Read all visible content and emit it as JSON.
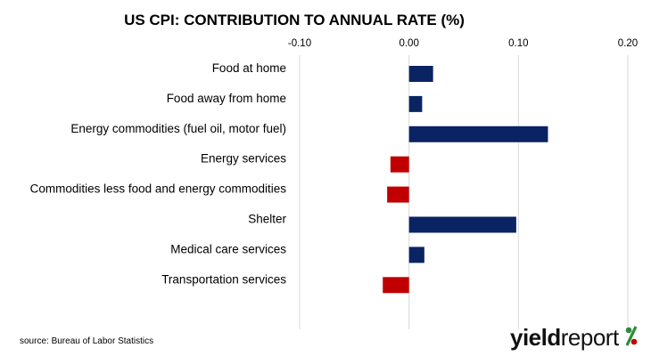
{
  "chart_data": {
    "type": "bar",
    "orientation": "horizontal",
    "title": "US CPI: CONTRIBUTION TO ANNUAL RATE (%)",
    "xlim": [
      -0.1,
      0.2
    ],
    "ticks": [
      "-0.10",
      "0.00",
      "0.10",
      "0.20"
    ],
    "tick_values": [
      -0.1,
      0.0,
      0.1,
      0.2
    ],
    "grid": true,
    "categories": [
      "Food at home",
      "Food away from home",
      "Energy commodities (fuel oil, motor fuel)",
      "Energy services",
      "Commodities less food and energy commodities",
      "Shelter",
      "Medical care services",
      "Transportation services"
    ],
    "values": [
      0.022,
      0.012,
      0.127,
      -0.017,
      -0.02,
      0.098,
      0.014,
      -0.024
    ],
    "colors": {
      "positive": "#0a2463",
      "negative": "#c00000",
      "grid": "#d9d9d9"
    }
  },
  "source": "source: Bureau of Labor Statistics",
  "logo": {
    "word_bold": "yield",
    "word_regular": "report",
    "symbol": "%"
  }
}
